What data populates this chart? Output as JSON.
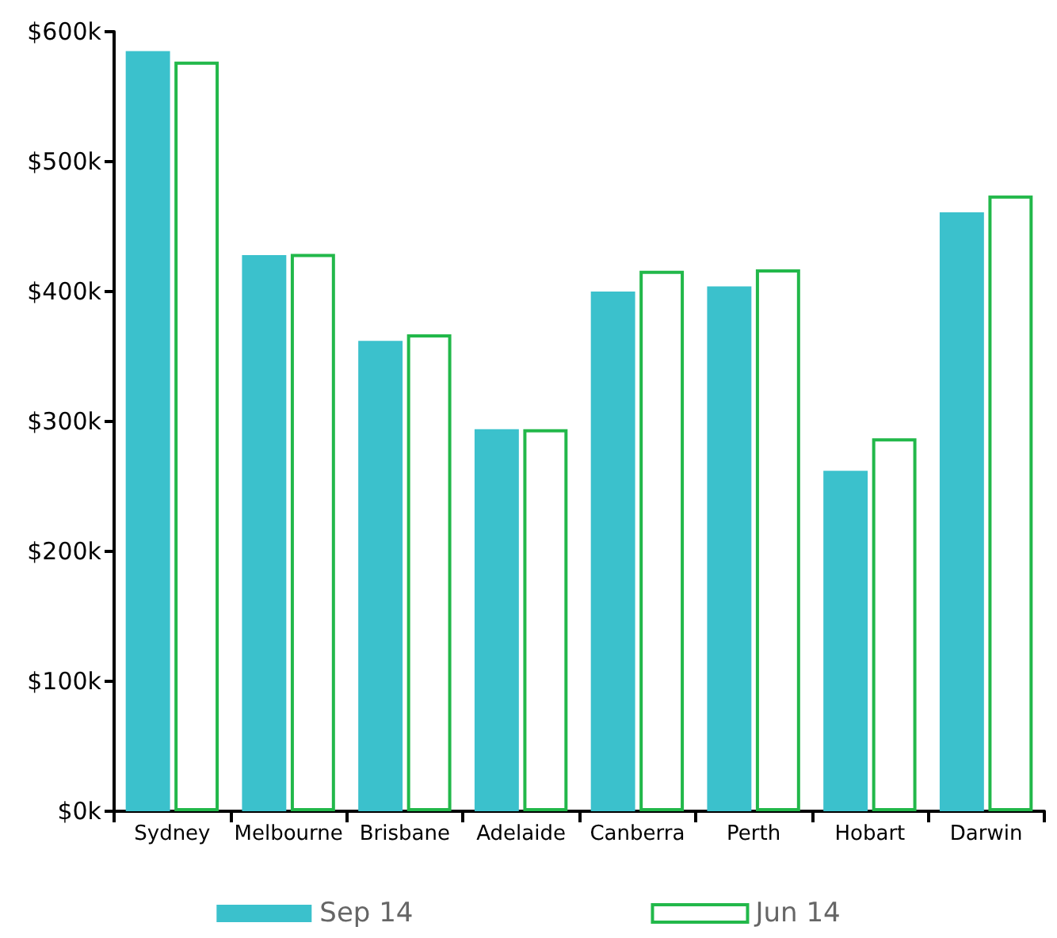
{
  "chart_data": {
    "type": "bar",
    "categories": [
      "Sydney",
      "Melbourne",
      "Brisbane",
      "Adelaide",
      "Canberra",
      "Perth",
      "Hobart",
      "Darwin"
    ],
    "series": [
      {
        "name": "Sep 14",
        "color": "#3bc1cc",
        "values": [
          585,
          428,
          362,
          294,
          400,
          404,
          262,
          461
        ]
      },
      {
        "name": "Jun 14",
        "color": "#22b84a",
        "values": [
          577,
          429,
          367,
          294,
          416,
          417,
          287,
          474
        ]
      }
    ],
    "ylim": [
      0,
      600
    ],
    "yticks": [
      {
        "value": 0,
        "label": "$0k"
      },
      {
        "value": 100,
        "label": "$100k"
      },
      {
        "value": 200,
        "label": "$200k"
      },
      {
        "value": 300,
        "label": "$300k"
      },
      {
        "value": 400,
        "label": "$400k"
      },
      {
        "value": 500,
        "label": "$500k"
      },
      {
        "value": 600,
        "label": "$600k"
      }
    ],
    "grid": false,
    "legend": "bottom"
  }
}
